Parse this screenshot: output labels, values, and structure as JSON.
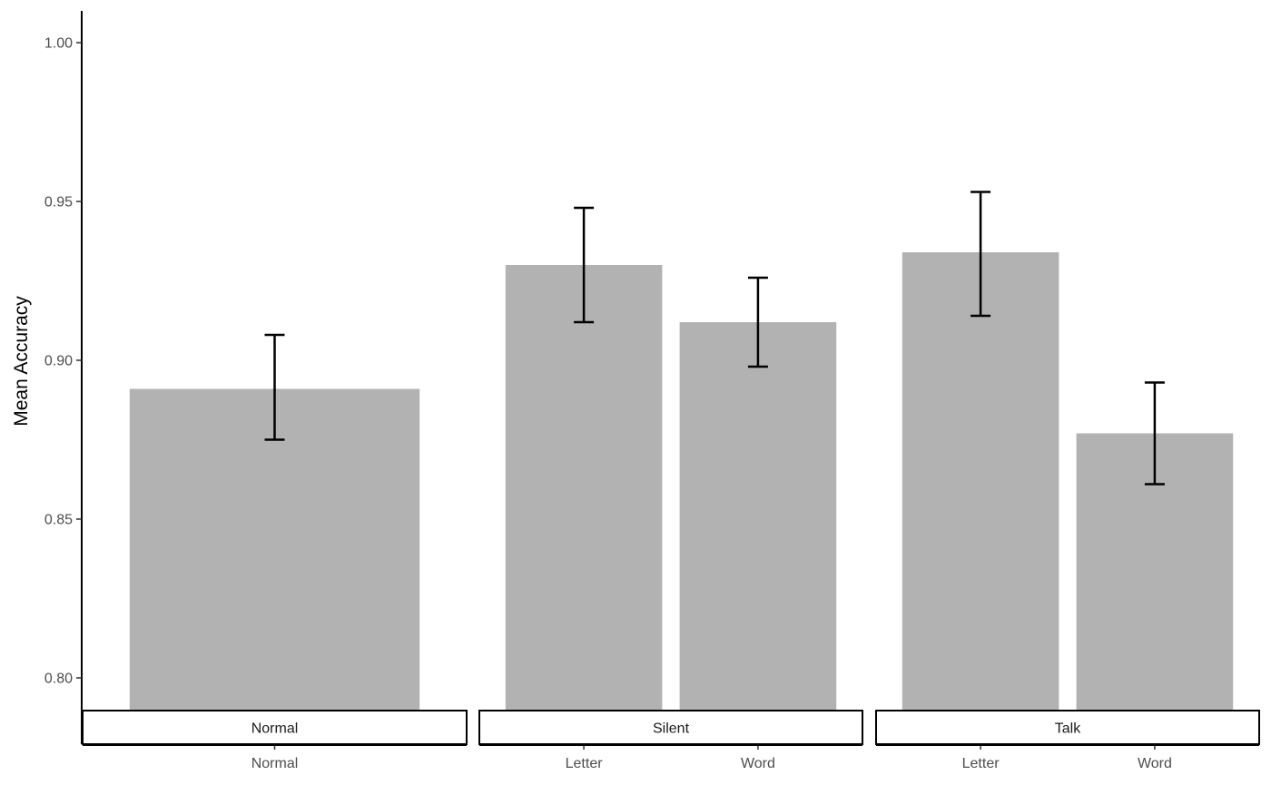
{
  "chart_data": {
    "type": "bar",
    "ylabel": "Mean Accuracy",
    "xlabel": "",
    "ylim": [
      0.79,
      1.01
    ],
    "yticks": [
      "0.80",
      "0.85",
      "0.90",
      "0.95",
      "1.00"
    ],
    "grid": false,
    "bar_color": "#b2b2b2",
    "panels": [
      {
        "strip": "Normal",
        "categories": [
          "Normal"
        ],
        "values": [
          0.891
        ],
        "error_low": [
          0.875
        ],
        "error_high": [
          0.908
        ]
      },
      {
        "strip": "Silent",
        "categories": [
          "Letter",
          "Word"
        ],
        "values": [
          0.93,
          0.912
        ],
        "error_low": [
          0.912,
          0.898
        ],
        "error_high": [
          0.948,
          0.926
        ]
      },
      {
        "strip": "Talk",
        "categories": [
          "Letter",
          "Word"
        ],
        "values": [
          0.934,
          0.877
        ],
        "error_low": [
          0.914,
          0.861
        ],
        "error_high": [
          0.953,
          0.893
        ]
      }
    ]
  }
}
